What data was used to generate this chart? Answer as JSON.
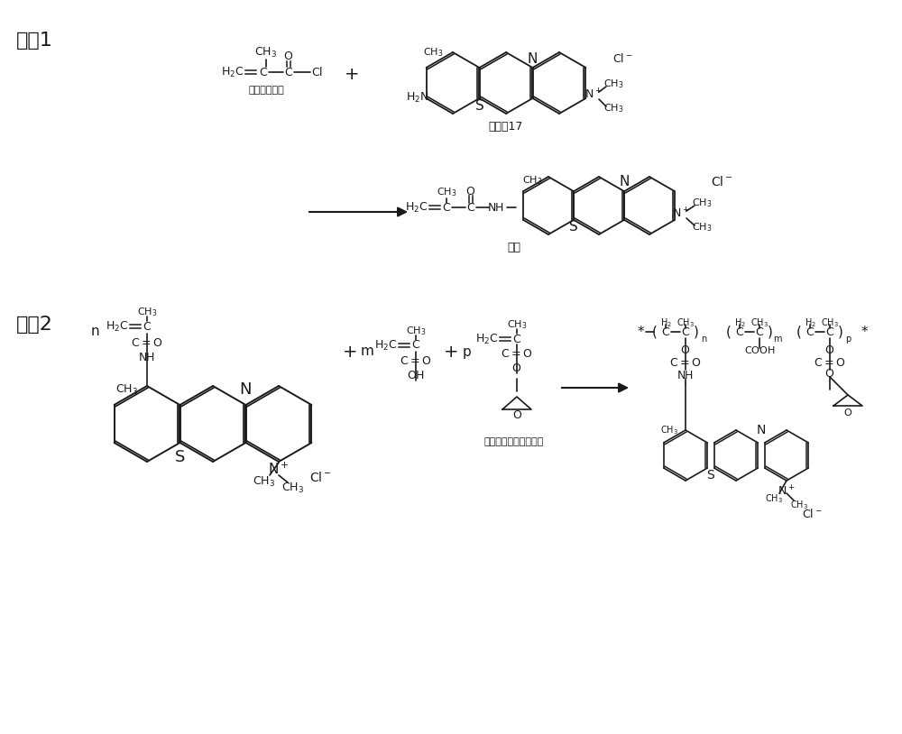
{
  "bg_color": "#ffffff",
  "text_color": "#1a1a1a",
  "step1_label": "步骤1",
  "step2_label": "步骤2",
  "label_mac": "甲基丙烯酰氯",
  "label_bb17": "碱性蓝17",
  "label_dye": "染料",
  "label_gma": "甲基丙烯酸缩水甘油酯",
  "figsize": [
    10.0,
    8.14
  ],
  "dpi": 100
}
